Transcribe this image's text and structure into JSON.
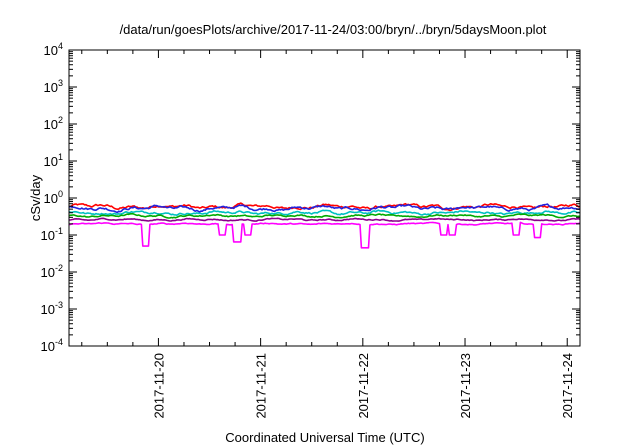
{
  "chart_data": {
    "type": "line",
    "title": "/data/run/goesPlots/archive/2017-11-24/03:00/bryn/../bryn/5daysMoon.plot",
    "xlabel": "Coordinated Universal Time (UTC)",
    "ylabel": "cSv/day",
    "yscale": "log",
    "ylim": [
      0.0001,
      10000
    ],
    "y_ticks": [
      {
        "value": 0.0001,
        "base": "10",
        "exp": "-4"
      },
      {
        "value": 0.001,
        "base": "10",
        "exp": "-3"
      },
      {
        "value": 0.01,
        "base": "10",
        "exp": "-2"
      },
      {
        "value": 0.1,
        "base": "10",
        "exp": "-1"
      },
      {
        "value": 1,
        "base": "10",
        "exp": "0"
      },
      {
        "value": 10,
        "base": "10",
        "exp": "1"
      },
      {
        "value": 100,
        "base": "10",
        "exp": "2"
      },
      {
        "value": 1000,
        "base": "10",
        "exp": "3"
      },
      {
        "value": 10000,
        "base": "10",
        "exp": "4"
      }
    ],
    "xlim": [
      "2017-11-19T03:00",
      "2017-11-24T03:00"
    ],
    "x_ticks": [
      "2017-11-20",
      "2017-11-21",
      "2017-11-22",
      "2017-11-23",
      "2017-11-24"
    ],
    "grid": false,
    "series": [
      {
        "color": "#ff0000",
        "base": 0.58,
        "noise": 0.18
      },
      {
        "color": "#2222dd",
        "base": 0.53,
        "noise": 0.18
      },
      {
        "color": "#00c0c0",
        "base": 0.4,
        "noise": 0.14
      },
      {
        "color": "#00aa00",
        "base": 0.33,
        "noise": 0.1
      },
      {
        "color": "#8b008b",
        "base": 0.26,
        "noise": 0.08
      },
      {
        "color": "#ff00ff",
        "base": 0.2,
        "noise": 0.07,
        "dips": [
          {
            "x": "2017-11-19T21:00",
            "y": 0.05
          },
          {
            "x": "2017-11-20T15:00",
            "y": 0.1
          },
          {
            "x": "2017-11-20T18:30",
            "y": 0.065
          },
          {
            "x": "2017-11-20T21:00",
            "y": 0.1
          },
          {
            "x": "2017-11-22T00:30",
            "y": 0.045
          },
          {
            "x": "2017-11-22T19:00",
            "y": 0.1
          },
          {
            "x": "2017-11-22T21:00",
            "y": 0.1
          },
          {
            "x": "2017-11-23T12:00",
            "y": 0.1
          },
          {
            "x": "2017-11-23T17:00",
            "y": 0.085
          }
        ]
      }
    ]
  }
}
